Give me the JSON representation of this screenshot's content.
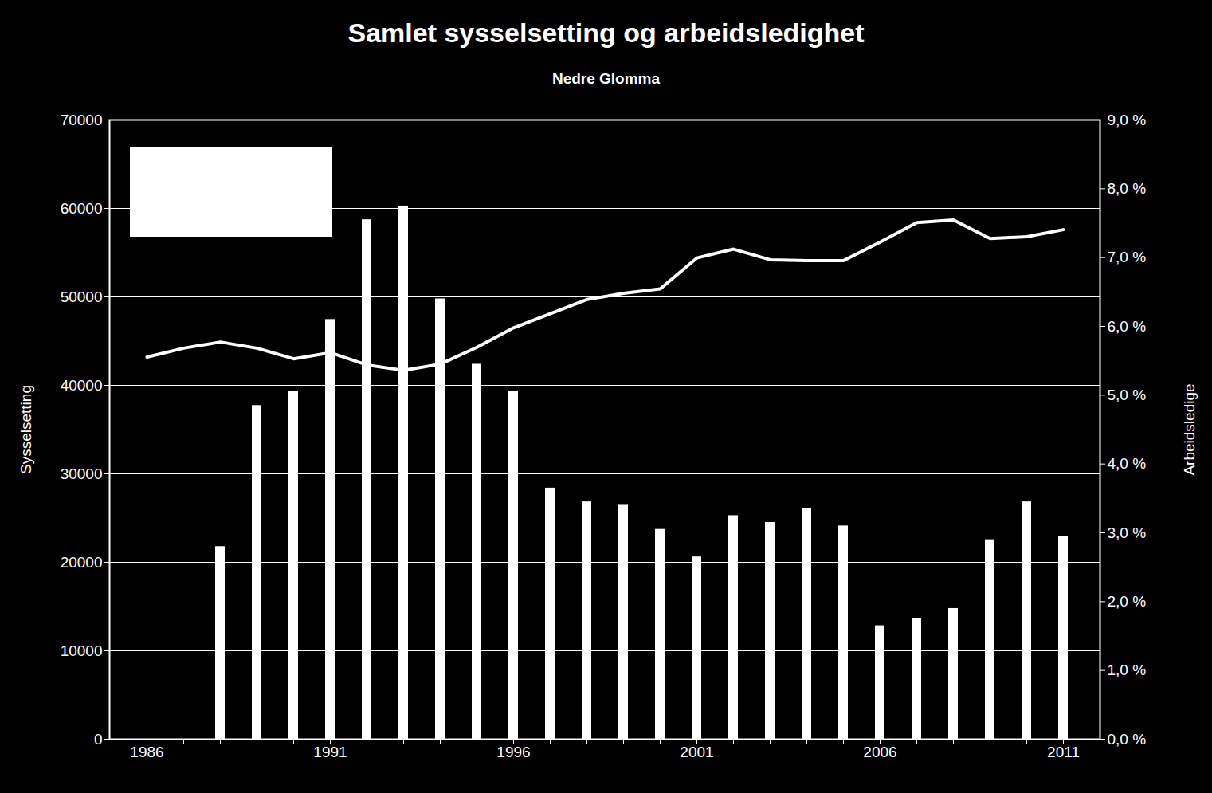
{
  "chart_data": {
    "type": "bar_line",
    "title": "Samlet sysselsetting og arbeidsledighet",
    "subtitle": "Nedre Glomma",
    "y_label": "Sysselsetting",
    "y2_label": "Arbeidsledige",
    "categories": [
      "1986",
      null,
      null,
      null,
      null,
      "1991",
      null,
      null,
      null,
      null,
      "1996",
      null,
      null,
      null,
      null,
      "2001",
      null,
      null,
      null,
      null,
      "2006",
      null,
      null,
      null,
      null,
      "2011"
    ],
    "series": [
      {
        "type": "bar",
        "axis": "y2",
        "color": "#ffffff",
        "values": [
          null,
          null,
          2.8,
          4.85,
          5.05,
          6.1,
          7.55,
          7.75,
          6.4,
          5.45,
          5.05,
          3.65,
          3.45,
          3.4,
          3.05,
          2.65,
          3.25,
          3.15,
          3.35,
          3.1,
          1.65,
          1.75,
          1.9,
          2.9,
          3.45,
          2.95
        ]
      },
      {
        "type": "line",
        "axis": "y",
        "color": "#ffffff",
        "values": [
          43200,
          44200,
          44900,
          44200,
          43000,
          43700,
          42300,
          41700,
          42400,
          44300,
          46500,
          48100,
          49700,
          50400,
          50900,
          54400,
          55400,
          54200,
          54100,
          54100,
          56200,
          58400,
          58700,
          56600,
          56800,
          57600
        ]
      }
    ],
    "ylim": [
      0,
      70000
    ],
    "yticks": [
      0,
      10000,
      20000,
      30000,
      40000,
      50000,
      60000,
      70000
    ],
    "y2lim": [
      0,
      9
    ],
    "y2ticks": [
      {
        "value": 0,
        "label": "0,0 %"
      },
      {
        "value": 1,
        "label": "1,0 %"
      },
      {
        "value": 2,
        "label": "2,0 %"
      },
      {
        "value": 3,
        "label": "3,0 %"
      },
      {
        "value": 4,
        "label": "4,0 %"
      },
      {
        "value": 5,
        "label": "5,0 %"
      },
      {
        "value": 6,
        "label": "6,0 %"
      },
      {
        "value": 7,
        "label": "7,0 %"
      },
      {
        "value": 8,
        "label": "8,0 %"
      },
      {
        "value": 9,
        "label": "9,0 %"
      }
    ],
    "grid": true
  }
}
